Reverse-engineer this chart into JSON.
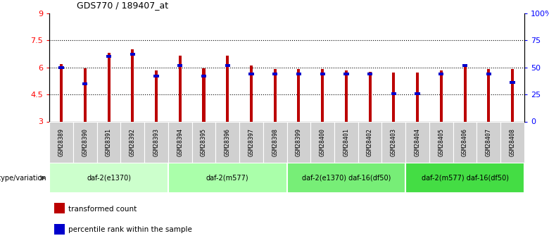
{
  "title": "GDS770 / 189407_at",
  "samples": [
    "GSM28389",
    "GSM28390",
    "GSM28391",
    "GSM28392",
    "GSM28393",
    "GSM28394",
    "GSM28395",
    "GSM28396",
    "GSM28397",
    "GSM28398",
    "GSM28399",
    "GSM28400",
    "GSM28401",
    "GSM28402",
    "GSM28403",
    "GSM28404",
    "GSM28405",
    "GSM28406",
    "GSM28407",
    "GSM28408"
  ],
  "transformed_count": [
    6.2,
    5.95,
    6.8,
    7.0,
    5.85,
    6.65,
    5.95,
    6.65,
    6.1,
    5.9,
    5.9,
    5.9,
    5.85,
    5.75,
    5.7,
    5.7,
    5.85,
    6.05,
    5.9,
    5.9
  ],
  "percentile_rank": [
    50,
    35,
    60,
    62,
    42,
    52,
    42,
    52,
    44,
    44,
    44,
    44,
    44,
    44,
    26,
    26,
    44,
    52,
    44,
    36
  ],
  "bar_color": "#bb0000",
  "pct_color": "#0000cc",
  "ylim_left": [
    3,
    9
  ],
  "ylim_right": [
    0,
    100
  ],
  "yticks_left": [
    3,
    4.5,
    6,
    7.5,
    9
  ],
  "ytick_labels_left": [
    "3",
    "4.5",
    "6",
    "7.5",
    "9"
  ],
  "yticks_right": [
    0,
    25,
    50,
    75,
    100
  ],
  "ytick_labels_right": [
    "0",
    "25",
    "50",
    "75",
    "100%"
  ],
  "hlines": [
    4.5,
    6.0,
    7.5
  ],
  "groups": [
    {
      "label": "daf-2(e1370)",
      "start": 0,
      "end": 4,
      "color": "#ccffcc"
    },
    {
      "label": "daf-2(m577)",
      "start": 5,
      "end": 9,
      "color": "#aaffaa"
    },
    {
      "label": "daf-2(e1370) daf-16(df50)",
      "start": 10,
      "end": 14,
      "color": "#77ee77"
    },
    {
      "label": "daf-2(m577) daf-16(df50)",
      "start": 15,
      "end": 19,
      "color": "#44dd44"
    }
  ],
  "group_label_prefix": "genotype/variation",
  "legend_items": [
    {
      "label": "transformed count",
      "color": "#bb0000"
    },
    {
      "label": "percentile rank within the sample",
      "color": "#0000cc"
    }
  ],
  "bar_width": 0.12,
  "bar_base": 3.0
}
